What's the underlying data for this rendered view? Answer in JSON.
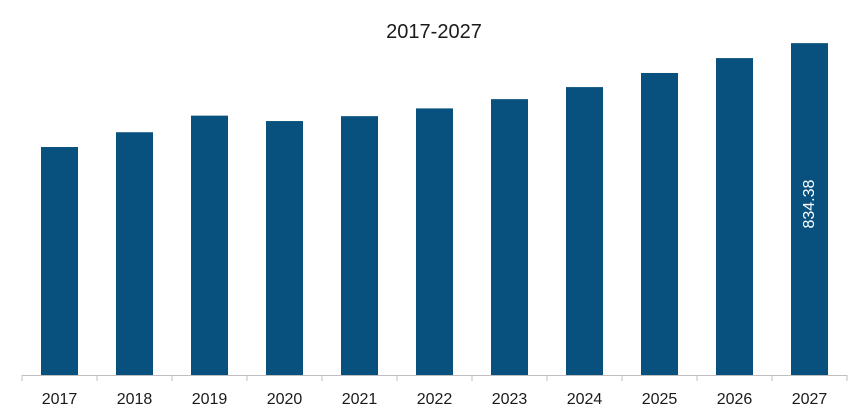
{
  "chart_data": {
    "type": "bar",
    "title": "2017-2027",
    "xlabel": "",
    "ylabel": "",
    "categories": [
      "2017",
      "2018",
      "2019",
      "2020",
      "2021",
      "2022",
      "2023",
      "2024",
      "2025",
      "2026",
      "2027"
    ],
    "values": [
      573.2,
      610.4,
      652.1,
      638.5,
      650.8,
      670.3,
      693.6,
      723.9,
      759.4,
      796.8,
      834.38
    ],
    "ylim": [
      0,
      880
    ],
    "grid": false,
    "legend": "none",
    "bar_color": "#08507e",
    "axis_color": "#bfbfbf",
    "data_labels": [
      {
        "category": "2027",
        "text": "834.38"
      }
    ]
  }
}
